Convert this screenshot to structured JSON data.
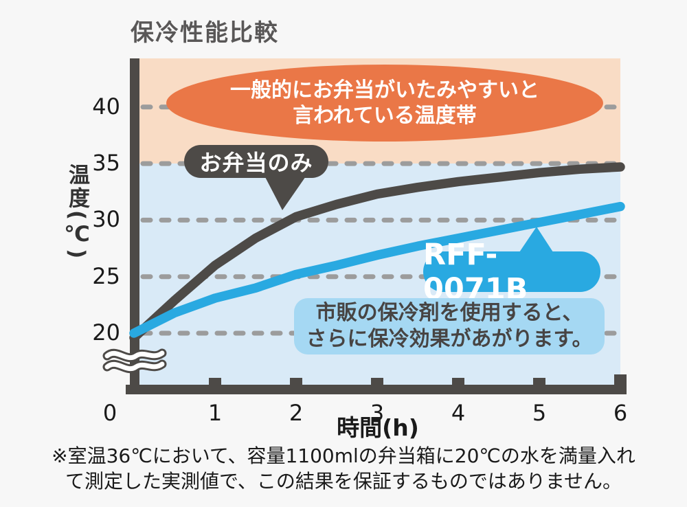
{
  "title": "保冷性能比較",
  "colors": {
    "page": "#f7f7f7",
    "dark": "#4d4a47",
    "blue": "#29a9e1",
    "peach": "#f9dcc5",
    "plotblue": "#d9eaf7",
    "orange": "#ea7747",
    "infoblue": "#a5d8f3",
    "grid": "#9c9c9c",
    "text": "#1a1a1a",
    "title": "#595757"
  },
  "chart_data": {
    "type": "line",
    "title": "保冷性能比較",
    "xlabel": "時間(h)",
    "ylabel": "温度(℃)",
    "x_ticks": [
      0,
      1,
      2,
      3,
      4,
      5,
      6
    ],
    "y_ticks": [
      20,
      25,
      30,
      35,
      40
    ],
    "xlim": [
      0,
      6
    ],
    "ylim_visible": [
      17.5,
      42.5
    ],
    "axis_break_bottom": true,
    "grid": "horizontal-dashed",
    "x": [
      0,
      0.5,
      1,
      1.5,
      2,
      2.5,
      3,
      3.5,
      4,
      4.5,
      5,
      5.5,
      6
    ],
    "series": [
      {
        "name": "お弁当のみ",
        "color": "#4d4a47",
        "values": [
          19.6,
          22.9,
          26.0,
          28.4,
          30.3,
          31.4,
          32.3,
          32.9,
          33.4,
          33.8,
          34.2,
          34.5,
          34.7
        ]
      },
      {
        "name": "RFF-0071B",
        "color": "#29a9e1",
        "values": [
          20.0,
          21.8,
          23.1,
          24.0,
          25.2,
          26.0,
          26.9,
          27.7,
          28.4,
          29.1,
          29.8,
          30.5,
          31.2
        ]
      }
    ],
    "danger_zone": {
      "from": 35,
      "label_line1": "一般的にお弁当がいたみやすいと",
      "label_line2": "言われている温度帯"
    },
    "note_box": {
      "line1": "市販の保冷剤を使用すると、",
      "line2": "さらに保冷効果があがります。"
    }
  },
  "footnote": {
    "line1": "※室温36℃において、容量1100mlの弁当箱に20℃の水を満量入れ",
    "line2": "て測定した実測値で、この結果を保証するものではありません。"
  }
}
